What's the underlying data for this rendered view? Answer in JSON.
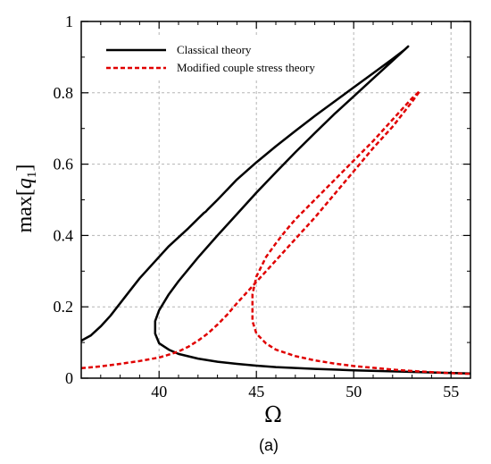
{
  "chart_data": {
    "type": "line",
    "title": "",
    "xlabel": "Ω",
    "ylabel": {
      "prefix": "max[",
      "var": "q",
      "sub": "1",
      "suffix": "]"
    },
    "caption": "(a)",
    "xlim": [
      36,
      56
    ],
    "ylim": [
      0,
      1
    ],
    "xticks": [
      40,
      45,
      50,
      55
    ],
    "yticks": [
      0,
      0.2,
      0.4,
      0.6,
      0.8,
      1
    ],
    "ytick_labels": [
      "0",
      "0.2",
      "0.4",
      "0.6",
      "0.8",
      "1"
    ],
    "grid": true,
    "legend_position": "top-left",
    "series": [
      {
        "name": "Classical theory",
        "color": "#000000",
        "style": "solid",
        "x": [
          36.0,
          36.5,
          37.0,
          37.5,
          38.0,
          38.5,
          39.0,
          39.5,
          40.0,
          40.5,
          41.0,
          41.5,
          42.0,
          42.3,
          42.4,
          42.5,
          43.0,
          44.0,
          45.0,
          46.0,
          47.0,
          48.0,
          49.0,
          50.0,
          51.0,
          52.0,
          52.6,
          52.8,
          52.0,
          51.0,
          50.0,
          49.0,
          48.0,
          47.0,
          46.0,
          45.0,
          44.0,
          43.0,
          42.0,
          41.0,
          40.5,
          40.0,
          39.8,
          39.8,
          40.0,
          40.5,
          41.0,
          42.0,
          43.0,
          44.0,
          45.0,
          46.0,
          48.0,
          50.0,
          52.0,
          54.0,
          56.0
        ],
        "y": [
          0.105,
          0.12,
          0.145,
          0.175,
          0.21,
          0.245,
          0.28,
          0.31,
          0.34,
          0.37,
          0.395,
          0.42,
          0.447,
          0.463,
          0.467,
          0.473,
          0.5,
          0.557,
          0.605,
          0.65,
          0.693,
          0.735,
          0.775,
          0.815,
          0.855,
          0.895,
          0.92,
          0.93,
          0.89,
          0.84,
          0.79,
          0.74,
          0.687,
          0.633,
          0.577,
          0.52,
          0.46,
          0.4,
          0.338,
          0.272,
          0.235,
          0.19,
          0.16,
          0.125,
          0.098,
          0.08,
          0.068,
          0.055,
          0.046,
          0.04,
          0.035,
          0.031,
          0.026,
          0.022,
          0.019,
          0.016,
          0.013
        ]
      },
      {
        "name": "Modified couple stress theory",
        "color": "#e00000",
        "style": "dashed",
        "x": [
          36.0,
          37.0,
          38.0,
          39.0,
          40.0,
          40.5,
          41.0,
          41.5,
          42.0,
          42.5,
          43.0,
          43.5,
          44.0,
          45.0,
          46.0,
          47.0,
          48.0,
          49.0,
          50.0,
          51.0,
          52.0,
          53.0,
          53.4,
          53.0,
          52.0,
          51.0,
          50.0,
          49.0,
          48.0,
          47.0,
          46.5,
          46.0,
          45.5,
          45.0,
          44.8,
          44.8,
          45.0,
          45.5,
          46.0,
          47.0,
          48.0,
          49.0,
          50.0,
          51.0,
          52.0,
          53.0,
          54.0,
          55.0,
          56.0
        ],
        "y": [
          0.028,
          0.033,
          0.04,
          0.048,
          0.058,
          0.066,
          0.075,
          0.088,
          0.105,
          0.125,
          0.15,
          0.178,
          0.21,
          0.27,
          0.33,
          0.39,
          0.45,
          0.515,
          0.58,
          0.645,
          0.705,
          0.775,
          0.805,
          0.785,
          0.725,
          0.665,
          0.61,
          0.555,
          0.5,
          0.445,
          0.413,
          0.378,
          0.34,
          0.285,
          0.235,
          0.16,
          0.125,
          0.097,
          0.08,
          0.062,
          0.05,
          0.041,
          0.034,
          0.029,
          0.024,
          0.02,
          0.017,
          0.014,
          0.012
        ]
      }
    ]
  }
}
